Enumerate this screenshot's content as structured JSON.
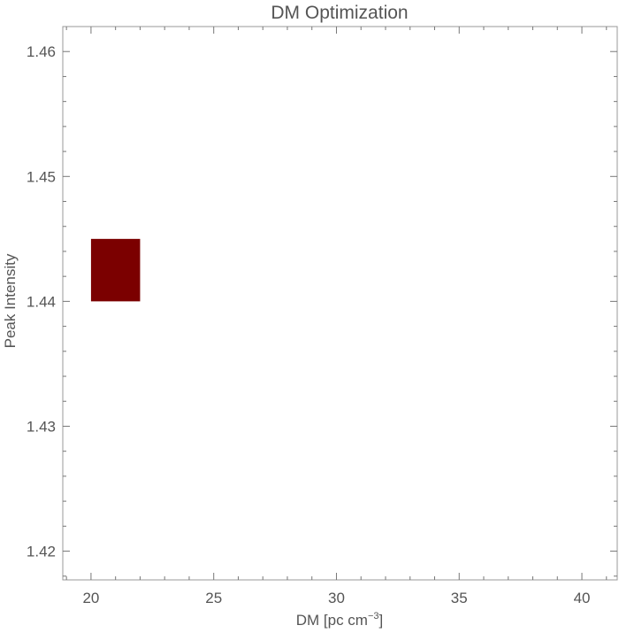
{
  "chart_data": {
    "type": "rect",
    "title": "DM Optimization",
    "xlabel": {
      "main": "DM [pc cm",
      "sup": "−3",
      "end": "]"
    },
    "ylabel": "Peak Intensity",
    "rects": [
      {
        "x0": 20,
        "x1": 22,
        "y0": 1.44,
        "y1": 1.445
      }
    ],
    "color": "#7b0000",
    "xlim": [
      18.85,
      41.44
    ],
    "ylim": [
      1.4177,
      1.462
    ],
    "xticks": [
      20,
      25,
      30,
      35,
      40
    ],
    "yticks": [
      1.42,
      1.43,
      1.44,
      1.45,
      1.46
    ],
    "xminorticks": [
      19,
      21,
      22,
      23,
      24,
      26,
      27,
      28,
      29,
      31,
      32,
      33,
      34,
      36,
      37,
      38,
      39,
      41
    ],
    "yminorticks": [
      1.418,
      1.422,
      1.424,
      1.426,
      1.428,
      1.432,
      1.434,
      1.436,
      1.438,
      1.442,
      1.444,
      1.446,
      1.448,
      1.452,
      1.454,
      1.456,
      1.458
    ]
  }
}
